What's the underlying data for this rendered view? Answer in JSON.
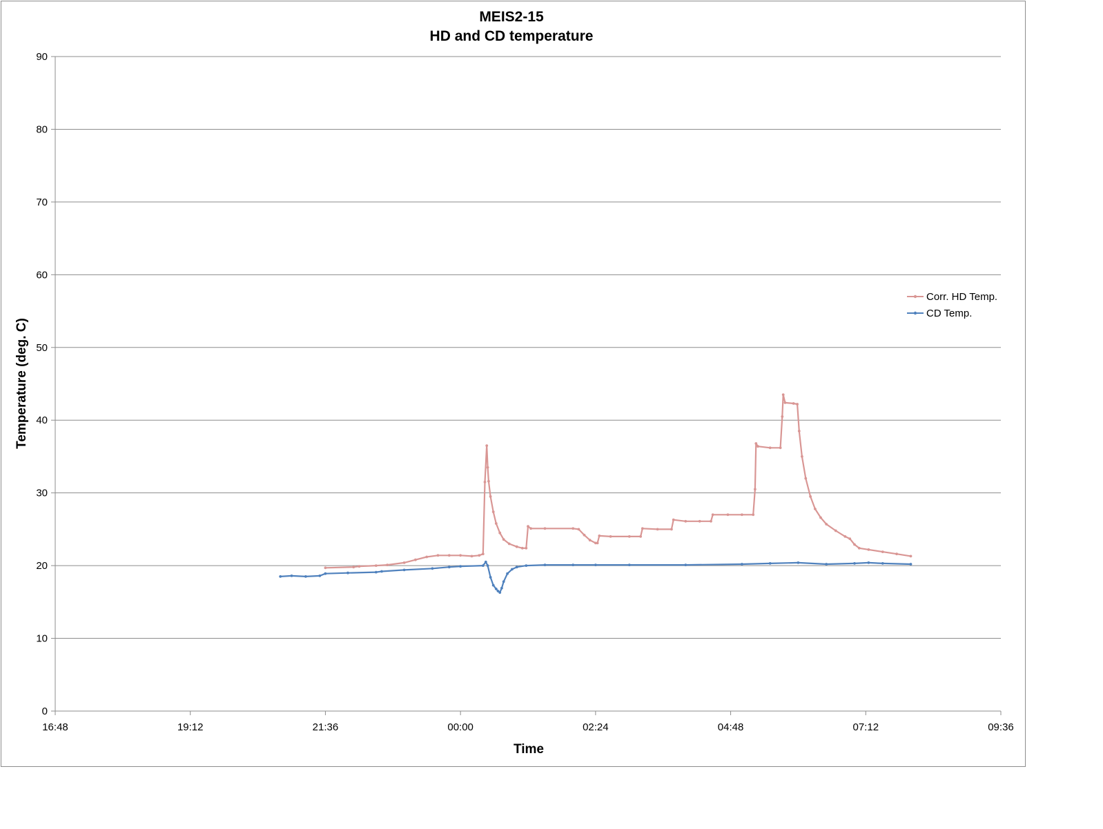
{
  "chart_data": {
    "type": "line",
    "title": "MEIS2-15",
    "subtitle": "HD and CD temperature",
    "xlabel": "Time",
    "ylabel": "Temperature (deg. C)",
    "xlim": [
      "16:48",
      "09:36"
    ],
    "ylim": [
      0,
      90
    ],
    "y_ticks": [
      0,
      10,
      20,
      30,
      40,
      50,
      60,
      70,
      80,
      90
    ],
    "x_ticks": [
      "16:48",
      "19:12",
      "21:36",
      "00:00",
      "02:24",
      "04:48",
      "07:12",
      "09:36"
    ],
    "grid": "horizontal",
    "legend_position": "right",
    "series": [
      {
        "name": "Corr. HD Temp.",
        "color": "#d99694",
        "points": [
          [
            "21:36",
            19.7
          ],
          [
            "22:06",
            19.8
          ],
          [
            "22:12",
            19.9
          ],
          [
            "22:30",
            20.0
          ],
          [
            "22:42",
            20.1
          ],
          [
            "23:00",
            20.4
          ],
          [
            "23:12",
            20.8
          ],
          [
            "23:24",
            21.2
          ],
          [
            "23:36",
            21.4
          ],
          [
            "23:48",
            21.4
          ],
          [
            "00:00",
            21.4
          ],
          [
            "00:12",
            21.3
          ],
          [
            "00:20",
            21.4
          ],
          [
            "00:24",
            21.6
          ],
          [
            "00:26",
            31.5
          ],
          [
            "00:28",
            36.5
          ],
          [
            "00:29",
            33.5
          ],
          [
            "00:30",
            31.6
          ],
          [
            "00:32",
            29.5
          ],
          [
            "00:35",
            27.4
          ],
          [
            "00:38",
            25.8
          ],
          [
            "00:42",
            24.5
          ],
          [
            "00:46",
            23.6
          ],
          [
            "00:52",
            23.0
          ],
          [
            "01:00",
            22.6
          ],
          [
            "01:06",
            22.4
          ],
          [
            "01:10",
            22.4
          ],
          [
            "01:12",
            25.4
          ],
          [
            "01:15",
            25.1
          ],
          [
            "01:30",
            25.1
          ],
          [
            "02:00",
            25.1
          ],
          [
            "02:06",
            25.0
          ],
          [
            "02:12",
            24.2
          ],
          [
            "02:18",
            23.5
          ],
          [
            "02:24",
            23.1
          ],
          [
            "02:26",
            23.1
          ],
          [
            "02:28",
            24.1
          ],
          [
            "02:40",
            24.0
          ],
          [
            "03:00",
            24.0
          ],
          [
            "03:12",
            24.0
          ],
          [
            "03:14",
            25.1
          ],
          [
            "03:30",
            25.0
          ],
          [
            "03:45",
            25.0
          ],
          [
            "03:47",
            26.3
          ],
          [
            "04:00",
            26.1
          ],
          [
            "04:15",
            26.1
          ],
          [
            "04:27",
            26.1
          ],
          [
            "04:29",
            27.0
          ],
          [
            "04:45",
            27.0
          ],
          [
            "05:00",
            27.0
          ],
          [
            "05:12",
            27.0
          ],
          [
            "05:14",
            30.5
          ],
          [
            "05:15",
            36.8
          ],
          [
            "05:17",
            36.4
          ],
          [
            "05:30",
            36.2
          ],
          [
            "05:41",
            36.2
          ],
          [
            "05:43",
            40.5
          ],
          [
            "05:44",
            43.5
          ],
          [
            "05:46",
            42.4
          ],
          [
            "05:55",
            42.3
          ],
          [
            "05:59",
            42.2
          ],
          [
            "06:01",
            38.5
          ],
          [
            "06:04",
            35.0
          ],
          [
            "06:08",
            32.0
          ],
          [
            "06:13",
            29.5
          ],
          [
            "06:18",
            27.8
          ],
          [
            "06:24",
            26.6
          ],
          [
            "06:30",
            25.7
          ],
          [
            "06:40",
            24.8
          ],
          [
            "06:50",
            24.0
          ],
          [
            "06:55",
            23.7
          ],
          [
            "07:00",
            22.9
          ],
          [
            "07:05",
            22.4
          ],
          [
            "07:15",
            22.2
          ],
          [
            "07:30",
            21.9
          ],
          [
            "07:45",
            21.6
          ],
          [
            "08:00",
            21.3
          ]
        ]
      },
      {
        "name": "CD Temp.",
        "color": "#4f81bd",
        "points": [
          [
            "20:48",
            18.5
          ],
          [
            "21:00",
            18.6
          ],
          [
            "21:15",
            18.5
          ],
          [
            "21:30",
            18.6
          ],
          [
            "21:36",
            18.9
          ],
          [
            "22:00",
            19.0
          ],
          [
            "22:30",
            19.1
          ],
          [
            "22:36",
            19.2
          ],
          [
            "23:00",
            19.4
          ],
          [
            "23:30",
            19.6
          ],
          [
            "23:48",
            19.8
          ],
          [
            "00:00",
            19.9
          ],
          [
            "00:24",
            20.0
          ],
          [
            "00:27",
            20.5
          ],
          [
            "00:29",
            20.0
          ],
          [
            "00:32",
            18.4
          ],
          [
            "00:35",
            17.3
          ],
          [
            "00:38",
            16.8
          ],
          [
            "00:40",
            16.5
          ],
          [
            "00:42",
            16.3
          ],
          [
            "00:44",
            16.9
          ],
          [
            "00:46",
            17.8
          ],
          [
            "00:50",
            18.9
          ],
          [
            "00:55",
            19.5
          ],
          [
            "01:00",
            19.8
          ],
          [
            "01:10",
            20.0
          ],
          [
            "01:30",
            20.1
          ],
          [
            "02:00",
            20.1
          ],
          [
            "02:24",
            20.1
          ],
          [
            "03:00",
            20.1
          ],
          [
            "04:00",
            20.1
          ],
          [
            "05:00",
            20.2
          ],
          [
            "05:30",
            20.3
          ],
          [
            "06:00",
            20.4
          ],
          [
            "06:30",
            20.2
          ],
          [
            "07:00",
            20.3
          ],
          [
            "07:15",
            20.4
          ],
          [
            "07:30",
            20.3
          ],
          [
            "08:00",
            20.2
          ]
        ]
      }
    ]
  }
}
